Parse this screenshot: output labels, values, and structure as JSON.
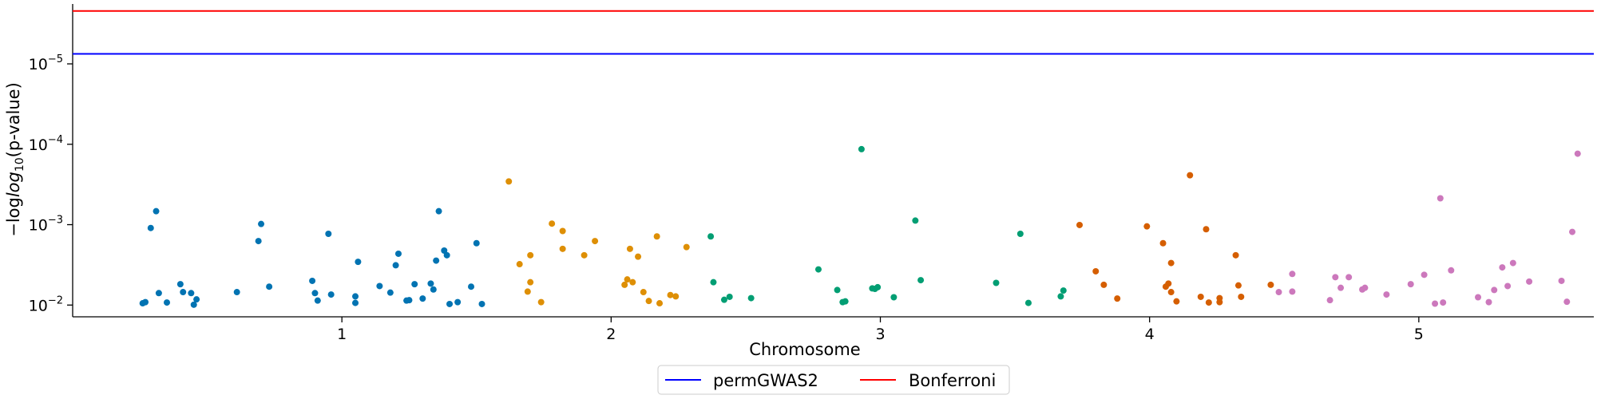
{
  "chart_data": {
    "type": "scatter",
    "title": "",
    "xlabel": "Chromosome",
    "ylabel_main": "−log",
    "ylabel_sub": "10",
    "ylabel_rest": "(p-value)",
    "ytick_base": "10",
    "y_scale": "log",
    "y_inverted": true,
    "ylim": [
      0.014,
      1.8e-06
    ],
    "xlim": [
      0,
      5.65
    ],
    "x_ticks": [
      {
        "label": "1",
        "value": 1.0
      },
      {
        "label": "2",
        "value": 2.0
      },
      {
        "label": "3",
        "value": 3.0
      },
      {
        "label": "4",
        "value": 4.0
      },
      {
        "label": "5",
        "value": 5.0
      }
    ],
    "y_ticks": [
      {
        "value": 1e-05,
        "exponent": "−5"
      },
      {
        "value": 0.0001,
        "exponent": "−4"
      },
      {
        "value": 0.001,
        "exponent": "−3"
      },
      {
        "value": 0.01,
        "exponent": "−2"
      }
    ],
    "thresholds": [
      {
        "name": "permGWAS2",
        "value": 7.5e-06,
        "color": "#0000ff"
      },
      {
        "name": "Bonferroni",
        "value": 2.2e-06,
        "color": "#ff0000"
      }
    ],
    "legend_position": "bottom-center",
    "grid": false,
    "series": [
      {
        "chromosome": "1",
        "color": "#0173b2",
        "points": [
          [
            0.26,
            0.0095
          ],
          [
            0.27,
            0.0092
          ],
          [
            0.29,
            0.0011
          ],
          [
            0.31,
            0.00068
          ],
          [
            0.32,
            0.0071
          ],
          [
            0.35,
            0.0093
          ],
          [
            0.4,
            0.0055
          ],
          [
            0.41,
            0.0069
          ],
          [
            0.44,
            0.0071
          ],
          [
            0.45,
            0.0099
          ],
          [
            0.46,
            0.0085
          ],
          [
            0.61,
            0.0069
          ],
          [
            0.69,
            0.0016
          ],
          [
            0.7,
            0.00098
          ],
          [
            0.73,
            0.0059
          ],
          [
            0.89,
            0.005
          ],
          [
            0.9,
            0.0071
          ],
          [
            0.91,
            0.0088
          ],
          [
            0.95,
            0.0013
          ],
          [
            0.96,
            0.0074
          ],
          [
            1.05,
            0.0078
          ],
          [
            1.05,
            0.0094
          ],
          [
            1.06,
            0.0029
          ],
          [
            1.14,
            0.0058
          ],
          [
            1.18,
            0.007
          ],
          [
            1.2,
            0.0032
          ],
          [
            1.21,
            0.0023
          ],
          [
            1.24,
            0.0088
          ],
          [
            1.25,
            0.0087
          ],
          [
            1.27,
            0.0055
          ],
          [
            1.3,
            0.0083
          ],
          [
            1.33,
            0.0054
          ],
          [
            1.34,
            0.0064
          ],
          [
            1.35,
            0.0028
          ],
          [
            1.36,
            0.00068
          ],
          [
            1.38,
            0.0021
          ],
          [
            1.39,
            0.0024
          ],
          [
            1.4,
            0.0097
          ],
          [
            1.43,
            0.0092
          ],
          [
            1.48,
            0.0059
          ],
          [
            1.5,
            0.0017
          ],
          [
            1.52,
            0.0097
          ]
        ]
      },
      {
        "chromosome": "2",
        "color": "#de8f05",
        "points": [
          [
            1.62,
            0.00029
          ],
          [
            1.66,
            0.0031
          ],
          [
            1.69,
            0.0068
          ],
          [
            1.7,
            0.0024
          ],
          [
            1.7,
            0.0052
          ],
          [
            1.74,
            0.0092
          ],
          [
            1.78,
            0.00097
          ],
          [
            1.82,
            0.002
          ],
          [
            1.82,
            0.0012
          ],
          [
            1.9,
            0.0024
          ],
          [
            1.94,
            0.0016
          ],
          [
            2.05,
            0.0056
          ],
          [
            2.06,
            0.0048
          ],
          [
            2.07,
            0.002
          ],
          [
            2.08,
            0.0052
          ],
          [
            2.1,
            0.0025
          ],
          [
            2.12,
            0.0069
          ],
          [
            2.14,
            0.0089
          ],
          [
            2.17,
            0.0014
          ],
          [
            2.18,
            0.0095
          ],
          [
            2.22,
            0.0075
          ],
          [
            2.24,
            0.0078
          ],
          [
            2.28,
            0.0019
          ]
        ]
      },
      {
        "chromosome": "3",
        "color": "#029e73",
        "points": [
          [
            2.37,
            0.0014
          ],
          [
            2.38,
            0.0052
          ],
          [
            2.42,
            0.0086
          ],
          [
            2.44,
            0.0079
          ],
          [
            2.52,
            0.0082
          ],
          [
            2.77,
            0.0036
          ],
          [
            2.84,
            0.0065
          ],
          [
            2.86,
            0.0092
          ],
          [
            2.87,
            0.009
          ],
          [
            2.93,
            0.000115
          ],
          [
            2.97,
            0.0062
          ],
          [
            2.98,
            0.0063
          ],
          [
            2.99,
            0.006
          ],
          [
            3.05,
            0.008
          ],
          [
            3.13,
            0.00089
          ],
          [
            3.15,
            0.0049
          ],
          [
            3.43,
            0.0053
          ],
          [
            3.52,
            0.0013
          ],
          [
            3.55,
            0.0094
          ],
          [
            3.67,
            0.0078
          ],
          [
            3.68,
            0.0066
          ]
        ]
      },
      {
        "chromosome": "4",
        "color": "#d55e00",
        "points": [
          [
            3.74,
            0.00101
          ],
          [
            3.8,
            0.0038
          ],
          [
            3.83,
            0.0056
          ],
          [
            3.88,
            0.0083
          ],
          [
            3.99,
            0.00105
          ],
          [
            4.05,
            0.0017
          ],
          [
            4.06,
            0.0059
          ],
          [
            4.07,
            0.0054
          ],
          [
            4.08,
            0.0069
          ],
          [
            4.08,
            0.003
          ],
          [
            4.1,
            0.009
          ],
          [
            4.15,
            0.000243
          ],
          [
            4.19,
            0.0079
          ],
          [
            4.21,
            0.00114
          ],
          [
            4.22,
            0.0093
          ],
          [
            4.26,
            0.0092
          ],
          [
            4.26,
            0.0082
          ],
          [
            4.32,
            0.0024
          ],
          [
            4.33,
            0.0057
          ],
          [
            4.34,
            0.0079
          ],
          [
            4.45,
            0.0056
          ]
        ]
      },
      {
        "chromosome": "5",
        "color": "#cc78bc",
        "points": [
          [
            4.48,
            0.0069
          ],
          [
            4.53,
            0.0041
          ],
          [
            4.53,
            0.0068
          ],
          [
            4.67,
            0.0087
          ],
          [
            4.69,
            0.0045
          ],
          [
            4.71,
            0.0061
          ],
          [
            4.74,
            0.0045
          ],
          [
            4.79,
            0.0064
          ],
          [
            4.8,
            0.0061
          ],
          [
            4.88,
            0.0074
          ],
          [
            4.97,
            0.0055
          ],
          [
            5.02,
            0.0042
          ],
          [
            5.06,
            0.0096
          ],
          [
            5.08,
            0.00047
          ],
          [
            5.09,
            0.0093
          ],
          [
            5.12,
            0.0037
          ],
          [
            5.22,
            0.008
          ],
          [
            5.26,
            0.0092
          ],
          [
            5.28,
            0.0065
          ],
          [
            5.31,
            0.0034
          ],
          [
            5.33,
            0.0058
          ],
          [
            5.35,
            0.003
          ],
          [
            5.41,
            0.0051
          ],
          [
            5.53,
            0.005
          ],
          [
            5.55,
            0.0091
          ],
          [
            5.57,
            0.00123
          ],
          [
            5.59,
            0.000131
          ]
        ]
      }
    ]
  }
}
